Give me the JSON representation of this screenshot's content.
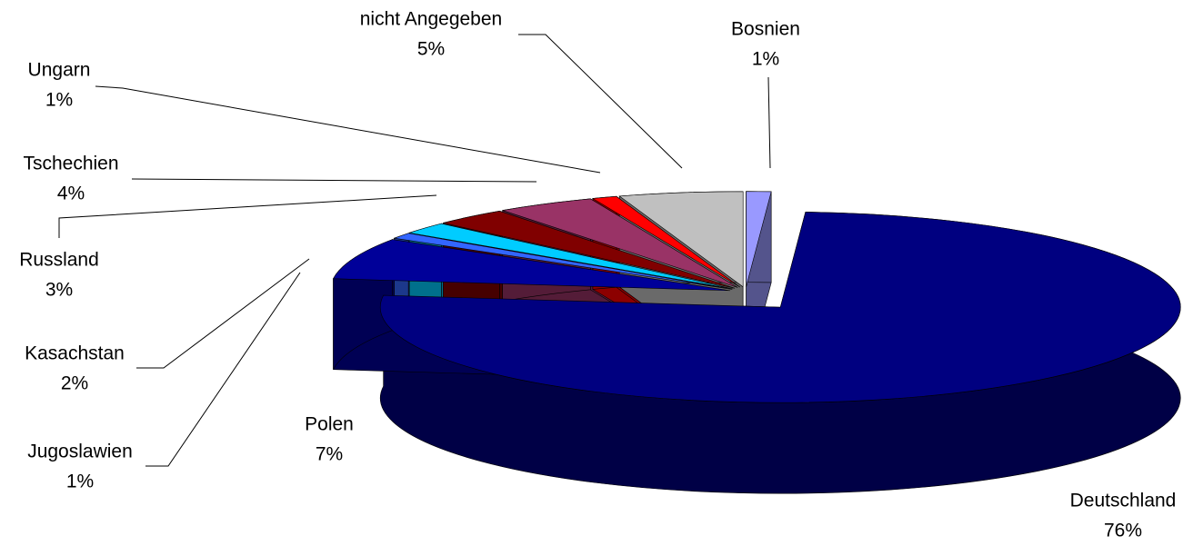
{
  "chart_data": {
    "type": "pie",
    "categories": [
      "Bosnien",
      "Deutschland",
      "Polen",
      "Jugoslawien",
      "Kasachstan",
      "Russland",
      "Tschechien",
      "Ungarn",
      "nicht Angegeben"
    ],
    "values": [
      1,
      76,
      7,
      1,
      2,
      3,
      4,
      1,
      5
    ],
    "value_labels": [
      "1%",
      "76%",
      "7%",
      "1%",
      "2%",
      "3%",
      "4%",
      "1%",
      "5%"
    ],
    "colors": [
      "#9999FF",
      "#000080",
      "#000099",
      "#3366FF",
      "#00CCFF",
      "#800000",
      "#993366",
      "#FF0000",
      "#C0C0C0"
    ]
  }
}
